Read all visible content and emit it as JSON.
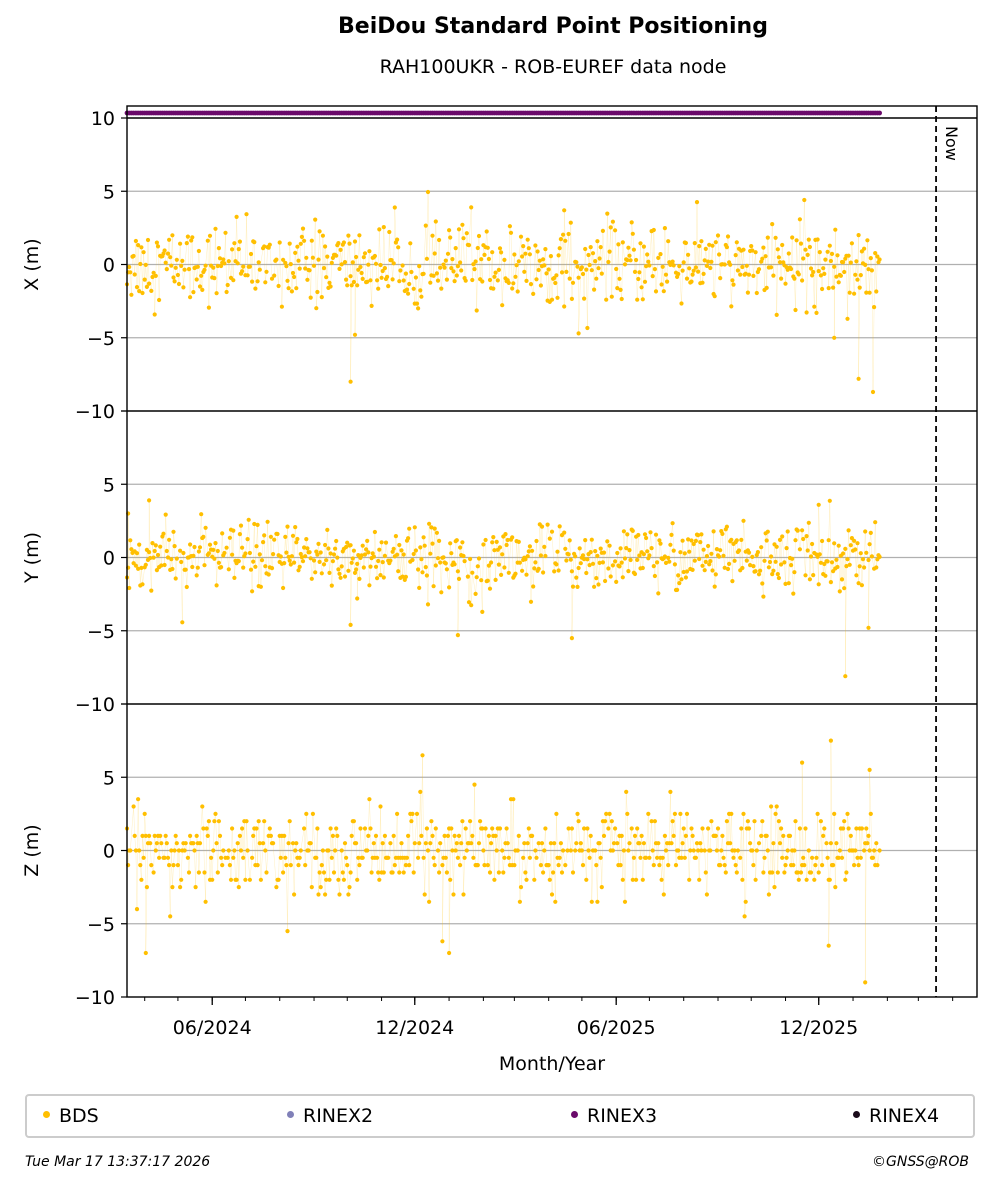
{
  "header": {
    "title": "BeiDou Standard Point Positioning",
    "subtitle": "RAH100UKR - ROB-EUREF data node"
  },
  "footer": {
    "timestamp": "Tue Mar 17 13:37:17 2026",
    "copyright": "©GNSS@ROB"
  },
  "legend": {
    "items": [
      {
        "label": "BDS",
        "color": "#ffbf00"
      },
      {
        "label": "RINEX2",
        "color": "#8080b8"
      },
      {
        "label": "RINEX3",
        "color": "#6b0a6b"
      },
      {
        "label": "RINEX4",
        "color": "#1a0a1a"
      }
    ]
  },
  "chart_data": {
    "type": "scatter",
    "xlabel": "Month/Year",
    "x_ticks": [
      "06/2024",
      "12/2024",
      "06/2025",
      "12/2025"
    ],
    "x_tick_dates": [
      "2024-06-01",
      "2024-12-01",
      "2025-06-01",
      "2025-12-01"
    ],
    "x_range": [
      "2024-03-16",
      "2026-04-23"
    ],
    "now_label": "Now",
    "now_date": "2026-03-17",
    "data_span": [
      "2024-03-16",
      "2026-01-25"
    ],
    "rinex3_availability": [
      "2024-03-16",
      "2026-01-25"
    ],
    "panels": [
      {
        "ylabel": "X (m)",
        "ylim": [
          -10,
          10
        ],
        "yticks": [
          "10",
          "5",
          "0",
          "−5",
          "−10"
        ],
        "summary": {
          "mean": 0.0,
          "spread": 1.3
        },
        "outliers": [
          {
            "date": "2024-10-04",
            "value": -8.0
          },
          {
            "date": "2024-10-08",
            "value": -4.8
          },
          {
            "date": "2025-01-21",
            "value": 3.9
          },
          {
            "date": "2025-04-15",
            "value": 3.7
          },
          {
            "date": "2025-04-28",
            "value": -4.7
          },
          {
            "date": "2025-11-18",
            "value": 4.4
          },
          {
            "date": "2025-12-15",
            "value": -5.0
          },
          {
            "date": "2026-01-06",
            "value": -7.8
          },
          {
            "date": "2026-01-19",
            "value": -8.7
          }
        ]
      },
      {
        "ylabel": "Y (m)",
        "ylim": [
          -10,
          10
        ],
        "yticks": [
          "",
          "5",
          "0",
          "−5",
          "−10"
        ],
        "summary": {
          "mean": 0.0,
          "spread": 1.1
        },
        "outliers": [
          {
            "date": "2024-03-17",
            "value": 3.0
          },
          {
            "date": "2024-04-05",
            "value": 3.9
          },
          {
            "date": "2024-10-04",
            "value": -4.6
          },
          {
            "date": "2024-10-10",
            "value": -2.8
          },
          {
            "date": "2025-01-09",
            "value": -5.3
          },
          {
            "date": "2025-04-22",
            "value": -5.5
          },
          {
            "date": "2025-12-01",
            "value": 3.6
          },
          {
            "date": "2025-12-25",
            "value": -8.1
          },
          {
            "date": "2026-01-15",
            "value": -4.8
          }
        ]
      },
      {
        "ylabel": "Z (m)",
        "ylim": [
          -10,
          10
        ],
        "yticks": [
          "",
          "5",
          "0",
          "−5",
          "−10"
        ],
        "summary": {
          "mean": 0.0,
          "spread": 1.4
        },
        "outliers": [
          {
            "date": "2024-04-02",
            "value": -7.0
          },
          {
            "date": "2024-12-08",
            "value": 6.5
          },
          {
            "date": "2024-12-26",
            "value": -6.2
          },
          {
            "date": "2025-01-01",
            "value": -7.0
          },
          {
            "date": "2025-11-16",
            "value": 6.0
          },
          {
            "date": "2025-12-10",
            "value": -6.5
          },
          {
            "date": "2025-12-12",
            "value": 7.5
          },
          {
            "date": "2026-01-12",
            "value": -9.0
          },
          {
            "date": "2026-01-16",
            "value": 5.5
          }
        ]
      }
    ]
  }
}
